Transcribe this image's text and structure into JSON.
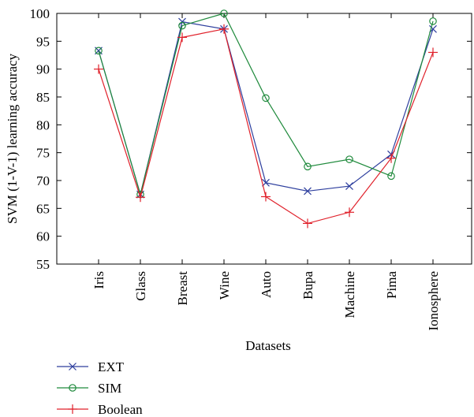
{
  "chart_data": {
    "type": "line",
    "xlabel": "Datasets",
    "ylabel": "SVM (1-V-1) learning accuracy",
    "ylim": [
      55,
      100
    ],
    "yticks": [
      55,
      60,
      65,
      70,
      75,
      80,
      85,
      90,
      95,
      100
    ],
    "categories": [
      "Iris",
      "Glass",
      "Breast",
      "Wine",
      "Auto",
      "Bupa",
      "Machine",
      "Pima",
      "Ionosphere"
    ],
    "grid": false,
    "legend_position": "bottom-left",
    "series": [
      {
        "name": "EXT",
        "color": "#2e3f9e",
        "marker": "x",
        "values": [
          93.3,
          67.5,
          98.5,
          97.2,
          69.6,
          68.1,
          69.0,
          74.7,
          97.2
        ]
      },
      {
        "name": "SIM",
        "color": "#1f8a3c",
        "marker": "circle",
        "values": [
          93.3,
          67.5,
          97.8,
          100.0,
          84.8,
          72.5,
          73.8,
          70.8,
          98.6
        ]
      },
      {
        "name": "Boolean",
        "color": "#e0202a",
        "marker": "plus",
        "values": [
          90.0,
          67.0,
          95.7,
          97.2,
          67.1,
          62.3,
          64.3,
          74.0,
          93.0
        ]
      }
    ]
  }
}
